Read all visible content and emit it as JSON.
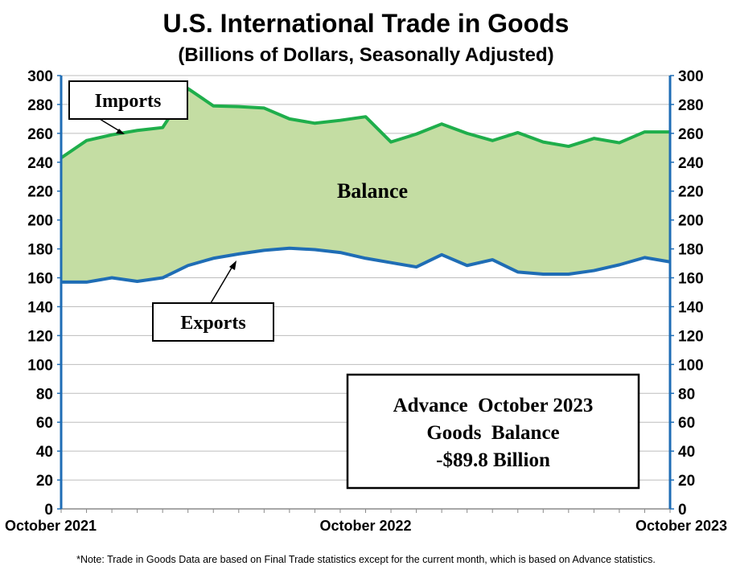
{
  "chart_data": {
    "type": "area",
    "title": "U.S. International Trade in Goods",
    "subtitle": "(Billions of Dollars, Seasonally Adjusted)",
    "ylim": [
      0,
      300
    ],
    "yticks": [
      0,
      20,
      40,
      60,
      80,
      100,
      120,
      140,
      160,
      180,
      200,
      220,
      240,
      260,
      280,
      300
    ],
    "x_tick_labels": [
      "October 2021",
      "October 2022",
      "October 2023"
    ],
    "x_tick_index": [
      0,
      12,
      24
    ],
    "grid": true,
    "series": [
      {
        "name": "Imports",
        "color": "#1fae4b",
        "values": [
          243,
          255,
          259,
          262,
          264,
          291,
          279,
          278.5,
          277.5,
          270,
          267,
          269,
          271.5,
          254,
          259.5,
          266.5,
          260,
          255,
          260.5,
          254,
          251,
          256.5,
          253.5,
          261,
          261
        ]
      },
      {
        "name": "Exports",
        "color": "#1f6db5",
        "values": [
          157,
          157,
          160,
          157.5,
          160,
          168.5,
          173.5,
          176.5,
          179,
          180.5,
          179.5,
          177.5,
          173.5,
          170.5,
          167.5,
          176,
          168.5,
          172.5,
          164,
          162.5,
          162.5,
          165,
          169,
          174,
          171
        ]
      }
    ],
    "fill_label": "Balance",
    "fill_color": "#c4dda3",
    "annotation": {
      "line1": "Advance  October 2023",
      "line2": "Goods  Balance",
      "line3": "-$89.8 Billion"
    },
    "note": "*Note: Trade in Goods Data are based on Final Trade statistics except for the current month, which is based on Advance statistics."
  }
}
